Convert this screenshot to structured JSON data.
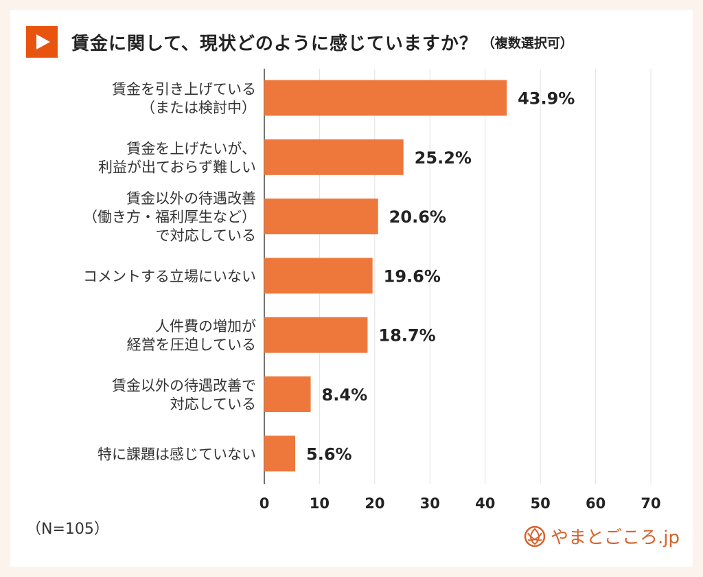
{
  "title": "賃金に関して、現状どのように感じていますか？",
  "subtitle": "（複数選択可）",
  "note": "（N=105）",
  "logo": "やまとごころ.jp",
  "colors": {
    "bar": "#ee783c",
    "accent": "#e8540f",
    "background": "#fdf3ed"
  },
  "chart_data": {
    "type": "bar",
    "orientation": "horizontal",
    "categories": [
      [
        "賃金を引き上げている",
        "（または検討中）"
      ],
      [
        "賃金を上げたいが、",
        "利益が出ておらず難しい"
      ],
      [
        "賃金以外の待遇改善",
        "（働き方・福利厚生など）",
        "で対応している"
      ],
      [
        "コメントする立場にいない"
      ],
      [
        "人件費の増加が",
        "経営を圧迫している"
      ],
      [
        "賃金以外の待遇改善で",
        "対応している"
      ],
      [
        "特に課題は感じていない"
      ]
    ],
    "values": [
      43.9,
      25.2,
      20.6,
      19.6,
      18.7,
      8.4,
      5.6
    ],
    "labels": [
      "43.9%",
      "25.2%",
      "20.6%",
      "19.6%",
      "18.7%",
      "8.4%",
      "5.6%"
    ],
    "xlim": [
      0,
      70
    ],
    "xticks": [
      "0",
      "10",
      "20",
      "30",
      "40",
      "50",
      "60",
      "70"
    ],
    "grid": true
  }
}
